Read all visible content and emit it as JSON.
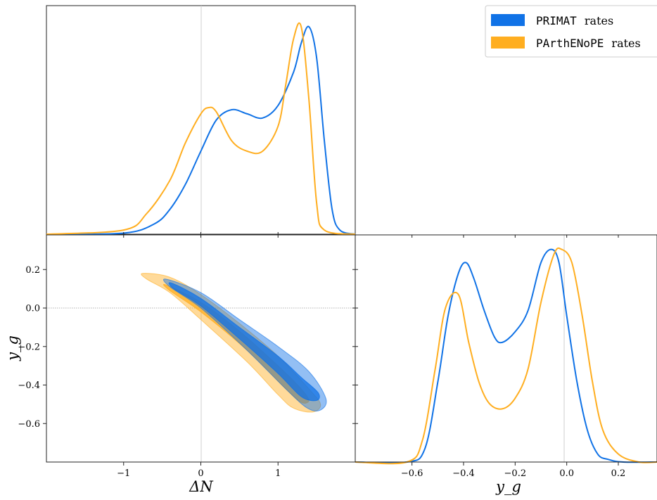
{
  "chart_data": {
    "type": "triangle-corner-plot",
    "parameters": [
      "ΔN",
      "y_g"
    ],
    "legend": {
      "placement": "top-right",
      "entries": [
        {
          "name_code": "PRIMAT",
          "name_suffix": "rates",
          "color": "#1072e6"
        },
        {
          "name_code": "PArthENoPE",
          "name_suffix": "rates",
          "color": "#ffae20"
        }
      ]
    },
    "reference_lines": {
      "dN": 0.0,
      "yg": 0.0
    },
    "panels": {
      "dN_1d": {
        "type": "line",
        "xlim": [
          -2.0,
          2.0
        ],
        "ylim": [
          0.0,
          1.0
        ],
        "series": [
          {
            "legend_index": 0,
            "x": [
              -2.0,
              -1.0,
              -0.6,
              -0.4,
              -0.2,
              0.0,
              0.2,
              0.4,
              0.6,
              0.8,
              1.0,
              1.2,
              1.3,
              1.4,
              1.5,
              1.6,
              1.7,
              1.8,
              2.0
            ],
            "y": [
              0.0,
              0.005,
              0.05,
              0.12,
              0.24,
              0.4,
              0.55,
              0.6,
              0.58,
              0.56,
              0.62,
              0.78,
              0.92,
              1.0,
              0.85,
              0.45,
              0.12,
              0.02,
              0.0
            ]
          },
          {
            "legend_index": 1,
            "x": [
              -2.0,
              -1.0,
              -0.7,
              -0.4,
              -0.2,
              0.0,
              0.1,
              0.2,
              0.4,
              0.6,
              0.8,
              1.0,
              1.1,
              1.2,
              1.3,
              1.4,
              1.5,
              1.6,
              2.0
            ],
            "y": [
              0.0,
              0.02,
              0.1,
              0.26,
              0.44,
              0.58,
              0.61,
              0.59,
              0.45,
              0.4,
              0.4,
              0.52,
              0.72,
              0.94,
              1.0,
              0.65,
              0.15,
              0.02,
              0.0
            ]
          }
        ]
      },
      "yg_1d": {
        "type": "line",
        "xlim": [
          -0.82,
          0.35
        ],
        "xticks": [
          "−0.6",
          "−0.4",
          "−0.2",
          "0.0",
          "0.2"
        ],
        "xlabel": "y_g",
        "ylim": [
          0.0,
          1.0
        ],
        "series": [
          {
            "legend_index": 0,
            "x": [
              -0.82,
              -0.62,
              -0.55,
              -0.5,
              -0.46,
              -0.42,
              -0.39,
              -0.36,
              -0.32,
              -0.28,
              -0.25,
              -0.2,
              -0.15,
              -0.1,
              -0.06,
              -0.03,
              0.0,
              0.04,
              0.08,
              0.12,
              0.16,
              0.22,
              0.35
            ],
            "y": [
              0.0,
              0.0,
              0.05,
              0.3,
              0.55,
              0.71,
              0.75,
              0.69,
              0.57,
              0.47,
              0.45,
              0.49,
              0.57,
              0.75,
              0.8,
              0.75,
              0.55,
              0.3,
              0.12,
              0.03,
              0.01,
              0.0,
              0.0
            ]
          },
          {
            "legend_index": 1,
            "x": [
              -0.82,
              -0.62,
              -0.56,
              -0.51,
              -0.47,
              -0.42,
              -0.38,
              -0.34,
              -0.3,
              -0.25,
              -0.2,
              -0.15,
              -0.1,
              -0.05,
              -0.02,
              0.02,
              0.06,
              0.1,
              0.14,
              0.2,
              0.28,
              0.35
            ],
            "y": [
              0.0,
              0.0,
              0.08,
              0.35,
              0.58,
              0.63,
              0.45,
              0.3,
              0.22,
              0.2,
              0.24,
              0.35,
              0.6,
              0.78,
              0.8,
              0.75,
              0.55,
              0.3,
              0.12,
              0.03,
              0.0,
              0.0
            ]
          }
        ]
      },
      "joint": {
        "type": "contour",
        "xlim": [
          -2.0,
          2.0
        ],
        "xticks": [
          "−1",
          "0",
          "1"
        ],
        "xlabel": "ΔN",
        "ylim": [
          -0.8,
          0.38
        ],
        "yticks": [
          "0.2",
          "0.0",
          "−0.2",
          "−0.4",
          "−0.6"
        ],
        "ylabel": "y_g",
        "series": [
          {
            "legend_index": 1,
            "contour_95": [
              [
                -0.75,
                0.18
              ],
              [
                -0.4,
                0.16
              ],
              [
                0.0,
                0.07
              ],
              [
                0.5,
                -0.08
              ],
              [
                1.0,
                -0.25
              ],
              [
                1.4,
                -0.42
              ],
              [
                1.55,
                -0.5
              ],
              [
                1.45,
                -0.54
              ],
              [
                1.2,
                -0.52
              ],
              [
                1.0,
                -0.45
              ],
              [
                0.6,
                -0.28
              ],
              [
                0.0,
                -0.06
              ],
              [
                -0.4,
                0.08
              ],
              [
                -0.7,
                0.15
              ]
            ],
            "contour_68": [
              [
                -0.45,
                0.12
              ],
              [
                0.0,
                0.03
              ],
              [
                0.5,
                -0.12
              ],
              [
                1.0,
                -0.3
              ],
              [
                1.3,
                -0.42
              ],
              [
                1.4,
                -0.48
              ],
              [
                1.3,
                -0.49
              ],
              [
                1.1,
                -0.42
              ],
              [
                0.6,
                -0.22
              ],
              [
                0.0,
                -0.02
              ],
              [
                -0.4,
                0.09
              ]
            ]
          },
          {
            "legend_index": 0,
            "contour_95": [
              [
                -0.45,
                0.15
              ],
              [
                0.0,
                0.08
              ],
              [
                0.5,
                -0.06
              ],
              [
                1.0,
                -0.2
              ],
              [
                1.4,
                -0.33
              ],
              [
                1.62,
                -0.47
              ],
              [
                1.55,
                -0.53
              ],
              [
                1.38,
                -0.52
              ],
              [
                1.1,
                -0.42
              ],
              [
                0.6,
                -0.22
              ],
              [
                0.0,
                0.0
              ],
              [
                -0.4,
                0.11
              ]
            ],
            "contour_68": [
              [
                -0.38,
                0.13
              ],
              [
                0.0,
                0.05
              ],
              [
                0.5,
                -0.1
              ],
              [
                1.0,
                -0.25
              ],
              [
                1.3,
                -0.36
              ],
              [
                1.52,
                -0.44
              ],
              [
                1.5,
                -0.48
              ],
              [
                1.3,
                -0.46
              ],
              [
                1.0,
                -0.34
              ],
              [
                0.5,
                -0.16
              ],
              [
                0.0,
                0.01
              ],
              [
                -0.35,
                0.1
              ]
            ]
          }
        ]
      }
    }
  }
}
